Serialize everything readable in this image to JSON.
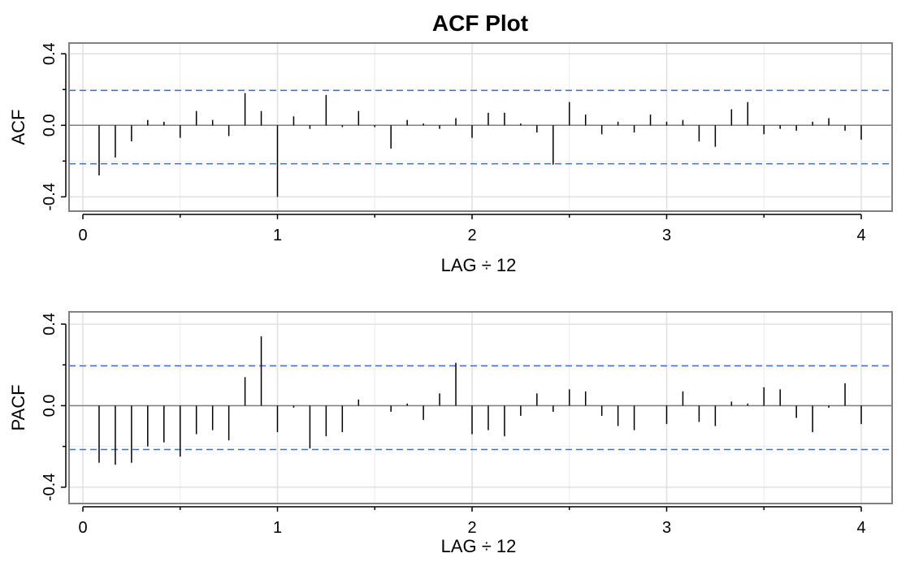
{
  "chart_data": [
    {
      "type": "bar",
      "title": "ACF Plot",
      "xlabel": "LAG ÷ 12",
      "ylabel": "ACF",
      "xlim": [
        0,
        4
      ],
      "ylim": [
        -0.4,
        0.4
      ],
      "xticks": [
        0,
        1,
        2,
        3,
        4
      ],
      "yticks": [
        "0.4",
        "0.0",
        "-0.4"
      ],
      "confidence_bounds": [
        0.195,
        -0.215
      ],
      "grid": true,
      "lags": [
        0.0833,
        0.1667,
        0.25,
        0.3333,
        0.4167,
        0.5,
        0.5833,
        0.6667,
        0.75,
        0.8333,
        0.9167,
        1.0,
        1.0833,
        1.1667,
        1.25,
        1.3333,
        1.4167,
        1.5,
        1.5833,
        1.6667,
        1.75,
        1.8333,
        1.9167,
        2.0,
        2.0833,
        2.1667,
        2.25,
        2.3333,
        2.4167,
        2.5,
        2.5833,
        2.6667,
        2.75,
        2.8333,
        2.9167,
        3.0,
        3.0833,
        3.1667,
        3.25,
        3.3333,
        3.4167,
        3.5,
        3.5833,
        3.6667,
        3.75,
        3.8333,
        3.9167,
        4.0
      ],
      "values": [
        -0.28,
        -0.18,
        -0.09,
        0.03,
        0.02,
        -0.07,
        0.08,
        0.03,
        -0.06,
        0.18,
        0.08,
        -0.4,
        0.05,
        -0.02,
        0.17,
        -0.01,
        0.08,
        -0.01,
        -0.13,
        0.03,
        0.01,
        -0.02,
        0.04,
        -0.07,
        0.07,
        0.07,
        0.01,
        -0.04,
        -0.22,
        0.13,
        0.06,
        -0.05,
        0.02,
        -0.04,
        0.06,
        0.02,
        0.03,
        -0.09,
        -0.12,
        0.09,
        0.13,
        -0.05,
        -0.02,
        -0.03,
        0.02,
        0.04,
        -0.03,
        -0.08
      ]
    },
    {
      "type": "bar",
      "title": "",
      "xlabel": "LAG ÷ 12",
      "ylabel": "PACF",
      "xlim": [
        0,
        4
      ],
      "ylim": [
        -0.4,
        0.4
      ],
      "xticks": [
        0,
        1,
        2,
        3,
        4
      ],
      "yticks": [
        "0.4",
        "0.0",
        "-0.4"
      ],
      "confidence_bounds": [
        0.195,
        -0.215
      ],
      "grid": true,
      "lags": [
        0.0833,
        0.1667,
        0.25,
        0.3333,
        0.4167,
        0.5,
        0.5833,
        0.6667,
        0.75,
        0.8333,
        0.9167,
        1.0,
        1.0833,
        1.1667,
        1.25,
        1.3333,
        1.4167,
        1.5,
        1.5833,
        1.6667,
        1.75,
        1.8333,
        1.9167,
        2.0,
        2.0833,
        2.1667,
        2.25,
        2.3333,
        2.4167,
        2.5,
        2.5833,
        2.6667,
        2.75,
        2.8333,
        2.9167,
        3.0,
        3.0833,
        3.1667,
        3.25,
        3.3333,
        3.4167,
        3.5,
        3.5833,
        3.6667,
        3.75,
        3.8333,
        3.9167,
        4.0
      ],
      "values": [
        -0.28,
        -0.29,
        -0.28,
        -0.2,
        -0.18,
        -0.25,
        -0.14,
        -0.12,
        -0.17,
        0.14,
        0.34,
        -0.13,
        -0.01,
        -0.21,
        -0.15,
        -0.13,
        0.03,
        0.0,
        -0.03,
        0.01,
        -0.07,
        0.06,
        0.21,
        -0.14,
        -0.12,
        -0.15,
        -0.05,
        0.06,
        -0.03,
        0.08,
        0.07,
        -0.05,
        -0.1,
        -0.12,
        0.0,
        -0.09,
        0.07,
        -0.08,
        -0.1,
        0.02,
        0.01,
        0.09,
        0.08,
        -0.06,
        -0.13,
        -0.01,
        0.11,
        -0.09
      ]
    }
  ]
}
